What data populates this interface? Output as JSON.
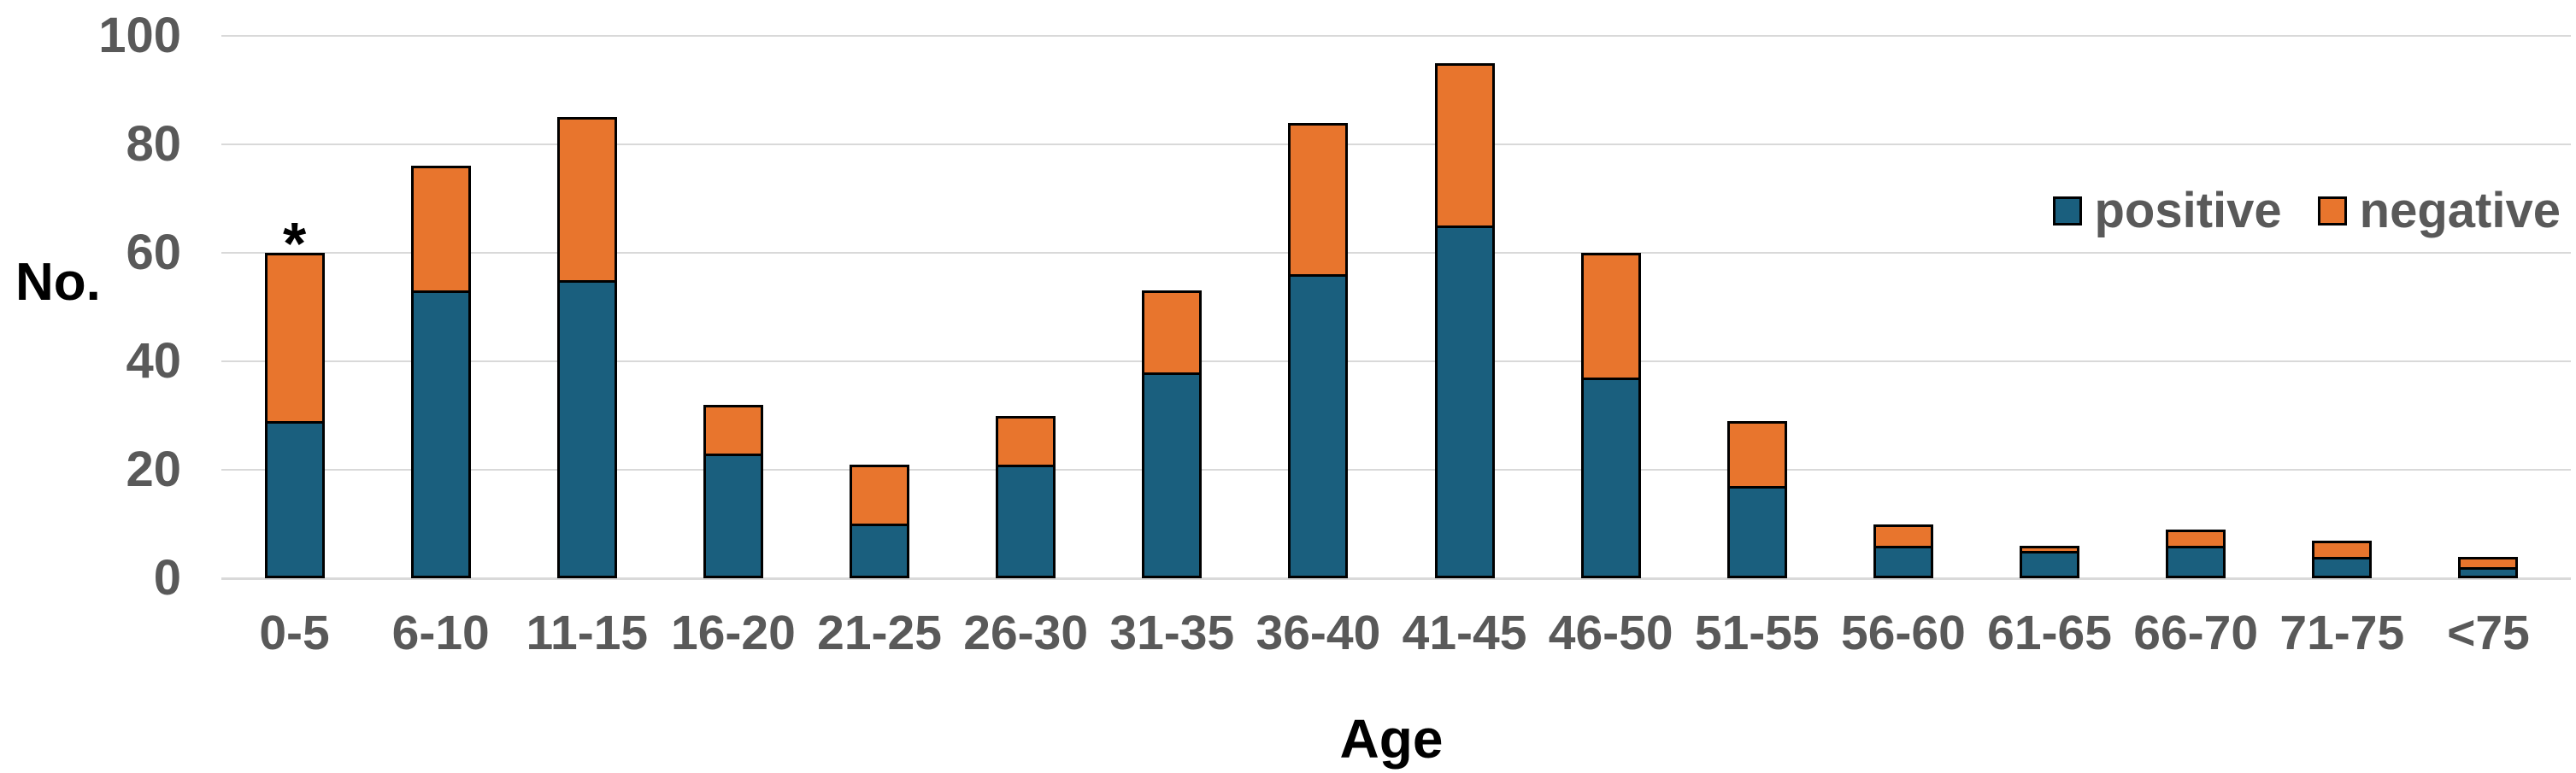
{
  "chart_data": {
    "type": "bar",
    "stacked": true,
    "categories": [
      "0-5",
      "6-10",
      "11-15",
      "16-20",
      "21-25",
      "26-30",
      "31-35",
      "36-40",
      "41-45",
      "46-50",
      "51-55",
      "56-60",
      "61-65",
      "66-70",
      "71-75",
      "<75"
    ],
    "series": [
      {
        "name": "positive",
        "color": "#1A5F7E",
        "values": [
          29,
          53,
          55,
          23,
          10,
          21,
          38,
          56,
          65,
          37,
          17,
          6,
          5,
          6,
          4,
          2
        ]
      },
      {
        "name": "negative",
        "color": "#E8752D",
        "values": [
          31,
          23,
          30,
          9,
          11,
          9,
          15,
          28,
          30,
          23,
          12,
          4,
          1,
          3,
          3,
          2
        ]
      }
    ],
    "totals": [
      60,
      76,
      85,
      32,
      21,
      30,
      53,
      84,
      95,
      60,
      29,
      10,
      6,
      9,
      7,
      4
    ],
    "xlabel": "Age",
    "ylabel": "No.",
    "ylim": [
      0,
      100
    ],
    "yticks": [
      0,
      20,
      40,
      60,
      80,
      100
    ],
    "grid": true,
    "legend_position": "inside-top-right",
    "annotations": [
      {
        "category": "0-5",
        "text": "*"
      }
    ],
    "colors": {
      "grid": "#D9D9D9",
      "tick_label": "#595959",
      "axis_title": "#000000",
      "bar_border": "#000000"
    }
  }
}
